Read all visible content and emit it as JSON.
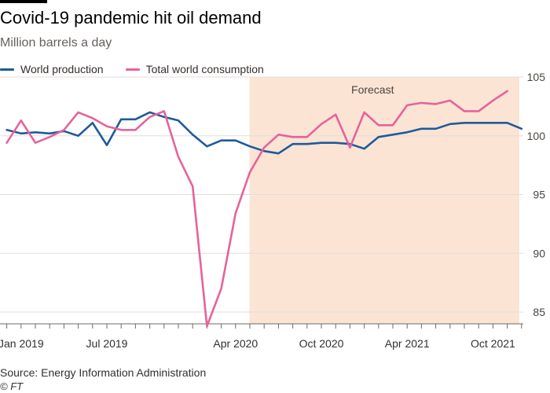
{
  "header": {
    "title": "Covid-19 pandemic hit oil demand",
    "subtitle": "Million barrels a day"
  },
  "footer": {
    "source": "Source: Energy Information Administration",
    "credit": "© FT"
  },
  "colors": {
    "production": "#1d5b9b",
    "consumption": "#e5639c",
    "forecast_band": "#fbe4d4",
    "grid": "#e3ddd8"
  },
  "chart_data": {
    "type": "line",
    "title": "Covid-19 pandemic hit oil demand",
    "subtitle": "Million barrels a day",
    "x_start": "2019-01",
    "x_end": "2021-12",
    "x_ticks": [
      {
        "label": "Jan 2019",
        "x": "2019-01"
      },
      {
        "label": "Jul 2019",
        "x": "2019-07"
      },
      {
        "label": "Apr 2020",
        "x": "2020-04"
      },
      {
        "label": "Oct 2020",
        "x": "2020-10"
      },
      {
        "label": "Apr 2021",
        "x": "2021-04"
      },
      {
        "label": "Oct 2021",
        "x": "2021-10"
      }
    ],
    "ylim": [
      84,
      105
    ],
    "y_ticks": [
      85,
      90,
      95,
      100,
      105
    ],
    "y_axis_side": "right",
    "grid": true,
    "legend_position": "top-left",
    "forecast": {
      "label": "Forecast",
      "start": "2020-05",
      "end": "2021-12"
    },
    "series": [
      {
        "name": "World production",
        "color_key": "production",
        "points": [
          {
            "x": "2018-12",
            "y": 100.5
          },
          {
            "x": "2019-01",
            "y": 100.2
          },
          {
            "x": "2019-02",
            "y": 100.3
          },
          {
            "x": "2019-03",
            "y": 100.2
          },
          {
            "x": "2019-04",
            "y": 100.4
          },
          {
            "x": "2019-05",
            "y": 100.0
          },
          {
            "x": "2019-06",
            "y": 101.1
          },
          {
            "x": "2019-07",
            "y": 99.2
          },
          {
            "x": "2019-08",
            "y": 101.4
          },
          {
            "x": "2019-09",
            "y": 101.4
          },
          {
            "x": "2019-10",
            "y": 102.0
          },
          {
            "x": "2019-11",
            "y": 101.6
          },
          {
            "x": "2019-12",
            "y": 101.3
          },
          {
            "x": "2020-01",
            "y": 100.1
          },
          {
            "x": "2020-02",
            "y": 99.1
          },
          {
            "x": "2020-03",
            "y": 99.6
          },
          {
            "x": "2020-04",
            "y": 99.6
          },
          {
            "x": "2020-05",
            "y": 99.1
          },
          {
            "x": "2020-06",
            "y": 98.7
          },
          {
            "x": "2020-07",
            "y": 98.5
          },
          {
            "x": "2020-08",
            "y": 99.3
          },
          {
            "x": "2020-09",
            "y": 99.3
          },
          {
            "x": "2020-10",
            "y": 99.4
          },
          {
            "x": "2020-11",
            "y": 99.4
          },
          {
            "x": "2020-12",
            "y": 99.3
          },
          {
            "x": "2021-01",
            "y": 98.9
          },
          {
            "x": "2021-02",
            "y": 99.9
          },
          {
            "x": "2021-03",
            "y": 100.1
          },
          {
            "x": "2021-04",
            "y": 100.3
          },
          {
            "x": "2021-05",
            "y": 100.6
          },
          {
            "x": "2021-06",
            "y": 100.6
          },
          {
            "x": "2021-07",
            "y": 101.0
          },
          {
            "x": "2021-08",
            "y": 101.1
          },
          {
            "x": "2021-09",
            "y": 101.1
          },
          {
            "x": "2021-10",
            "y": 101.1
          },
          {
            "x": "2021-11",
            "y": 101.1
          },
          {
            "x": "2021-12",
            "y": 100.6
          }
        ]
      },
      {
        "name": "Total world consumption",
        "color_key": "consumption",
        "points": [
          {
            "x": "2018-12",
            "y": 99.4
          },
          {
            "x": "2019-01",
            "y": 101.3
          },
          {
            "x": "2019-02",
            "y": 99.4
          },
          {
            "x": "2019-03",
            "y": 99.9
          },
          {
            "x": "2019-04",
            "y": 100.5
          },
          {
            "x": "2019-05",
            "y": 102.0
          },
          {
            "x": "2019-06",
            "y": 101.5
          },
          {
            "x": "2019-07",
            "y": 100.8
          },
          {
            "x": "2019-08",
            "y": 100.5
          },
          {
            "x": "2019-09",
            "y": 100.5
          },
          {
            "x": "2019-10",
            "y": 101.6
          },
          {
            "x": "2019-11",
            "y": 102.1
          },
          {
            "x": "2019-12",
            "y": 98.2
          },
          {
            "x": "2020-01",
            "y": 95.7
          },
          {
            "x": "2020-02",
            "y": 83.8
          },
          {
            "x": "2020-03",
            "y": 87.0
          },
          {
            "x": "2020-04",
            "y": 93.4
          },
          {
            "x": "2020-05",
            "y": 96.9
          },
          {
            "x": "2020-06",
            "y": 99.0
          },
          {
            "x": "2020-07",
            "y": 100.1
          },
          {
            "x": "2020-08",
            "y": 99.9
          },
          {
            "x": "2020-09",
            "y": 99.9
          },
          {
            "x": "2020-10",
            "y": 101.0
          },
          {
            "x": "2020-11",
            "y": 101.8
          },
          {
            "x": "2020-12",
            "y": 99.0
          },
          {
            "x": "2021-01",
            "y": 102.0
          },
          {
            "x": "2021-02",
            "y": 100.9
          },
          {
            "x": "2021-03",
            "y": 100.9
          },
          {
            "x": "2021-04",
            "y": 102.6
          },
          {
            "x": "2021-05",
            "y": 102.8
          },
          {
            "x": "2021-06",
            "y": 102.7
          },
          {
            "x": "2021-07",
            "y": 103.0
          },
          {
            "x": "2021-08",
            "y": 102.1
          },
          {
            "x": "2021-09",
            "y": 102.1
          },
          {
            "x": "2021-10",
            "y": 103.0
          },
          {
            "x": "2021-11",
            "y": 103.8
          }
        ]
      }
    ]
  }
}
